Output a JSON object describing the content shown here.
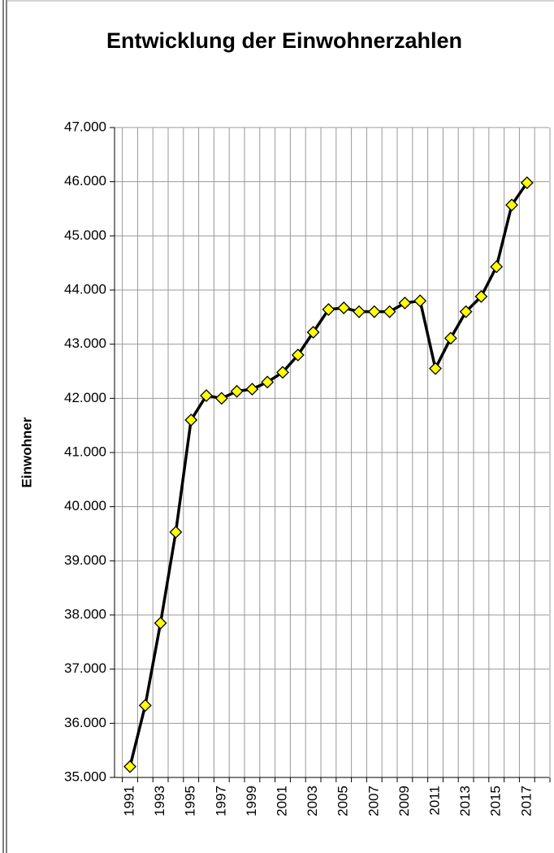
{
  "chart_data": {
    "type": "line",
    "title": "Entwicklung der Einwohnerzahlen",
    "y_label": "Einwohner",
    "categories": [
      "1991",
      null,
      "1993",
      null,
      "1995",
      null,
      "1997",
      null,
      "1999",
      null,
      "2001",
      null,
      "2003",
      null,
      "2005",
      null,
      "2007",
      null,
      "2009",
      null,
      "2011",
      null,
      "2013",
      null,
      "2015",
      null,
      "2017"
    ],
    "series": [
      {
        "name": "Einwohner",
        "color": "#000000",
        "marker_color": "#ffff00",
        "values": [
          35200,
          36330,
          37850,
          39530,
          41600,
          42050,
          42000,
          42130,
          42170,
          42300,
          42480,
          42800,
          43220,
          43640,
          43670,
          43600,
          43600,
          43600,
          43760,
          43800,
          42550,
          43110,
          43600,
          43880,
          44430,
          45570,
          45980
        ]
      }
    ],
    "ylim": [
      35000,
      47000
    ],
    "yticks": [
      {
        "value": 35000,
        "label": "35.000"
      },
      {
        "value": 36000,
        "label": "36.000"
      },
      {
        "value": 37000,
        "label": "37.000"
      },
      {
        "value": 38000,
        "label": "38.000"
      },
      {
        "value": 39000,
        "label": "39.000"
      },
      {
        "value": 40000,
        "label": "40.000"
      },
      {
        "value": 41000,
        "label": "41.000"
      },
      {
        "value": 42000,
        "label": "42.000"
      },
      {
        "value": 43000,
        "label": "43.000"
      },
      {
        "value": 44000,
        "label": "44.000"
      },
      {
        "value": 45000,
        "label": "45.000"
      },
      {
        "value": 46000,
        "label": "46.000"
      },
      {
        "value": 47000,
        "label": "47.000"
      }
    ],
    "grid": true
  }
}
